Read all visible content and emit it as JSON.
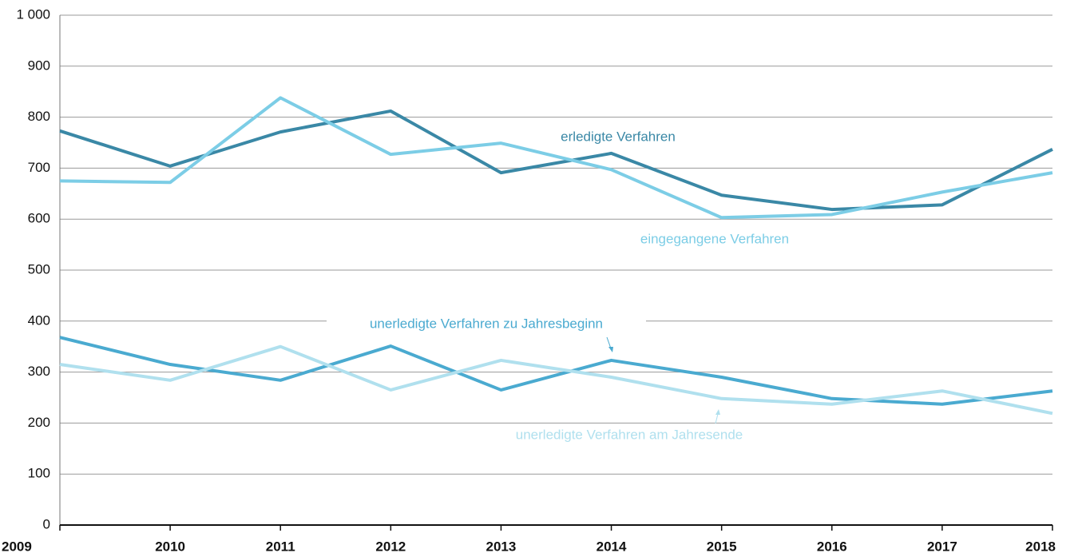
{
  "chart_data": {
    "type": "line",
    "categories": [
      "2009",
      "2010",
      "2011",
      "2012",
      "2013",
      "2014",
      "2015",
      "2016",
      "2017",
      "2018"
    ],
    "series": [
      {
        "name": "erledigte Verfahren",
        "color": "#3a88a6",
        "values": [
          773,
          704,
          771,
          812,
          691,
          729,
          647,
          619,
          628,
          737
        ]
      },
      {
        "name": "eingegangene Verfahren",
        "color": "#7ccde6",
        "values": [
          675,
          672,
          838,
          727,
          749,
          697,
          603,
          609,
          653,
          691
        ]
      },
      {
        "name": "unerledigte Verfahren zu Jahresbeginn",
        "color": "#4aaad0",
        "values": [
          368,
          315,
          284,
          351,
          265,
          323,
          290,
          248,
          237,
          263
        ]
      },
      {
        "name": "unerledigte Verfahren am Jahresende",
        "color": "#b0e0ee",
        "values": [
          315,
          284,
          350,
          265,
          323,
          290,
          248,
          237,
          263,
          219
        ]
      }
    ],
    "ylim": [
      0,
      1000
    ],
    "yticks": [
      0,
      100,
      200,
      300,
      400,
      500,
      600,
      700,
      800,
      900,
      {
        "value": 1000,
        "label": "1 000"
      }
    ],
    "grid": true
  }
}
